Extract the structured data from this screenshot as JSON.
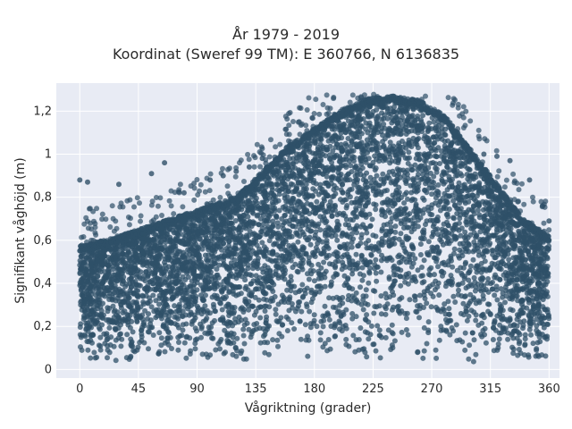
{
  "chart_data": {
    "type": "scatter",
    "title_line1": "År 1979 - 2019",
    "title_line2": "Koordinat (Sweref 99 TM): E 360766, N 6136835",
    "xlabel": "Vågriktning (grader)",
    "ylabel": "Signifikant våghöjd (m)",
    "xlim": [
      -18,
      368
    ],
    "ylim": [
      -0.04,
      1.33
    ],
    "xticks": [
      0,
      45,
      90,
      135,
      180,
      225,
      270,
      315,
      360
    ],
    "xtick_labels": [
      "0",
      "45",
      "90",
      "135",
      "180",
      "225",
      "270",
      "315",
      "360"
    ],
    "yticks": [
      0,
      0.2,
      0.4,
      0.6,
      0.8,
      1.0,
      1.2
    ],
    "ytick_labels": [
      "0",
      "0,2",
      "0,4",
      "0,6",
      "0,8",
      "1",
      "1,2"
    ],
    "grid": true,
    "marker_color": "#2f5068",
    "plot_background": "#e8ebf4",
    "envelope": {
      "x": [
        0,
        20,
        40,
        60,
        80,
        100,
        120,
        140,
        160,
        180,
        200,
        220,
        240,
        260,
        280,
        300,
        320,
        340,
        360
      ],
      "y_max": [
        0.58,
        0.6,
        0.64,
        0.68,
        0.72,
        0.76,
        0.8,
        0.92,
        1.04,
        1.12,
        1.2,
        1.26,
        1.27,
        1.25,
        1.18,
        1.02,
        0.86,
        0.7,
        0.62
      ],
      "y_min": [
        0.03,
        0.03,
        0.03,
        0.03,
        0.03,
        0.03,
        0.03,
        0.03,
        0.03,
        0.03,
        0.03,
        0.03,
        0.03,
        0.03,
        0.03,
        0.03,
        0.03,
        0.03,
        0.03
      ]
    },
    "outliers": [
      [
        0,
        0.88
      ],
      [
        6,
        0.87
      ],
      [
        30,
        0.86
      ],
      [
        55,
        0.91
      ],
      [
        65,
        0.96
      ],
      [
        80,
        0.82
      ],
      [
        100,
        0.88
      ],
      [
        110,
        0.9
      ],
      [
        120,
        0.92
      ],
      [
        130,
        0.94
      ],
      [
        140,
        0.98
      ],
      [
        300,
        1.02
      ],
      [
        310,
        1.0
      ],
      [
        320,
        0.99
      ],
      [
        330,
        0.97
      ],
      [
        345,
        0.88
      ],
      [
        355,
        0.76
      ],
      [
        360,
        0.69
      ]
    ]
  }
}
